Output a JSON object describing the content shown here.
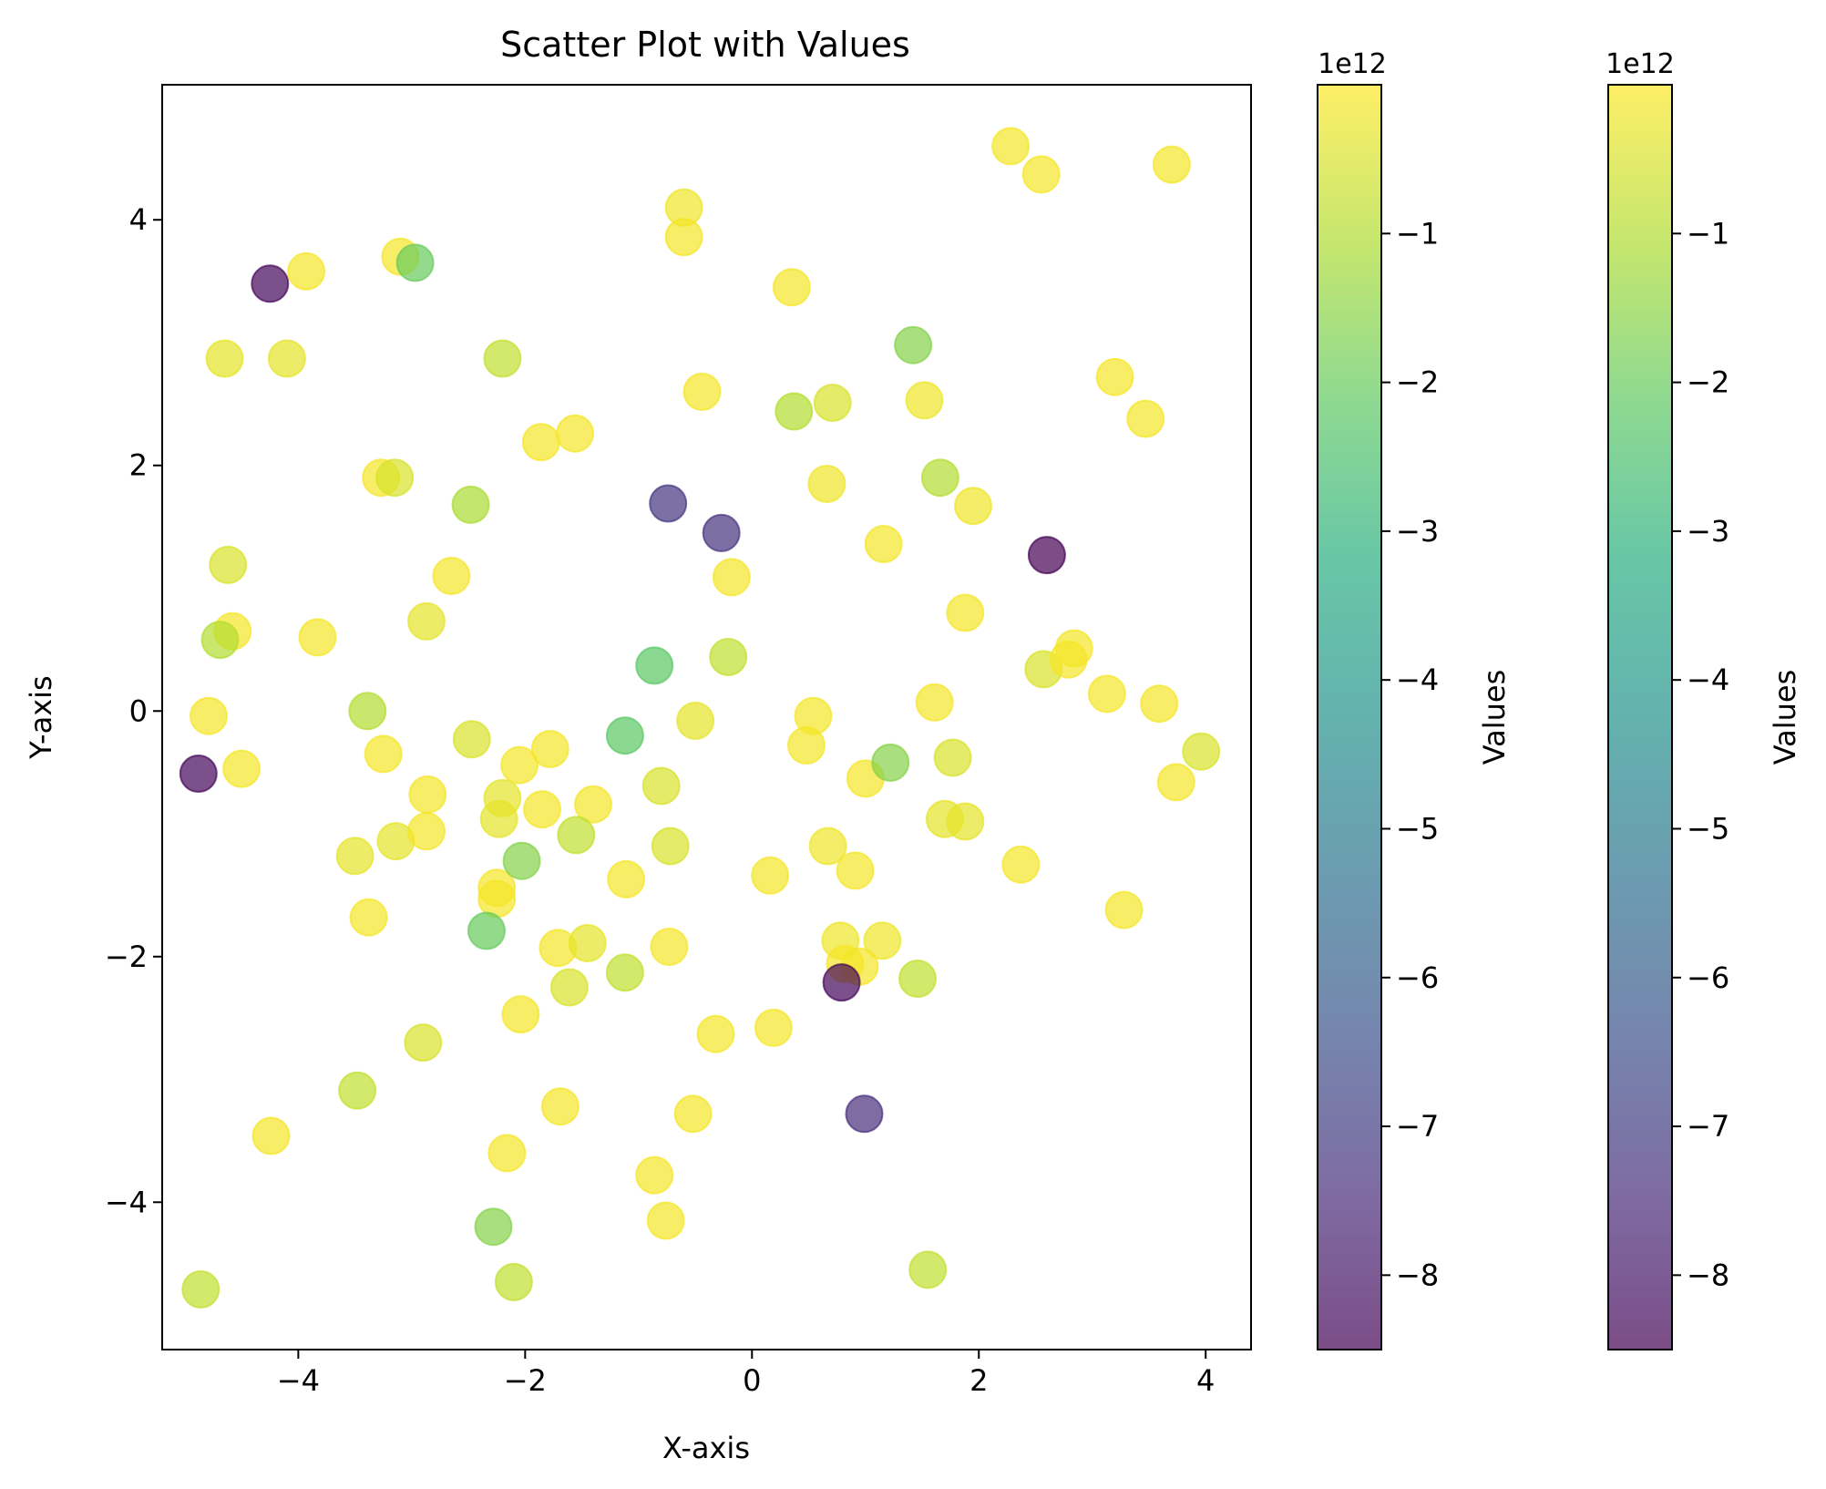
{
  "chart_data": {
    "type": "scatter",
    "title": "Scatter Plot with Values",
    "xlabel": "X-axis",
    "ylabel": "Y-axis",
    "xlim": [
      -5.2,
      4.4
    ],
    "ylim": [
      -5.2,
      5.1
    ],
    "xticks": [
      -4,
      -2,
      0,
      2,
      4
    ],
    "yticks": [
      -4,
      -2,
      0,
      2,
      4
    ],
    "xtick_labels": [
      "−4",
      "−2",
      "0",
      "2",
      "4"
    ],
    "ytick_labels": [
      "−4",
      "−2",
      "0",
      "2",
      "4"
    ],
    "colormap": "viridis",
    "alpha": 0.7,
    "grid": false,
    "colorbars": [
      {
        "label": "Values",
        "offset_text": "1e12",
        "range": [
          -8.5,
          0.0
        ],
        "ticks": [
          -8,
          -7,
          -6,
          -5,
          -4,
          -3,
          -2,
          -1
        ],
        "tick_labels": [
          "−8",
          "−7",
          "−6",
          "−5",
          "−4",
          "−3",
          "−2",
          "−1"
        ]
      },
      {
        "label": "Values",
        "offset_text": "1e12",
        "range": [
          -8.5,
          0.0
        ],
        "ticks": [
          -8,
          -7,
          -6,
          -5,
          -4,
          -3,
          -2,
          -1
        ],
        "tick_labels": [
          "−8",
          "−7",
          "−6",
          "−5",
          "−4",
          "−3",
          "−2",
          "−1"
        ]
      }
    ],
    "points": [
      [
        -4.25,
        3.48,
        -8.4
      ],
      [
        -3.93,
        3.58,
        -0.1
      ],
      [
        -3.1,
        3.7,
        -0.1
      ],
      [
        -2.97,
        3.65,
        -2.0
      ],
      [
        -4.65,
        2.87,
        -0.3
      ],
      [
        -4.1,
        2.87,
        -0.3
      ],
      [
        -2.2,
        2.87,
        -0.8
      ],
      [
        -0.6,
        4.1,
        -0.2
      ],
      [
        -0.6,
        3.86,
        -0.1
      ],
      [
        0.35,
        3.45,
        -0.1
      ],
      [
        2.28,
        4.6,
        -0.1
      ],
      [
        2.55,
        4.37,
        -0.1
      ],
      [
        3.7,
        4.45,
        -0.1
      ],
      [
        1.42,
        2.98,
        -1.6
      ],
      [
        -0.44,
        2.6,
        -0.1
      ],
      [
        0.37,
        2.44,
        -1.0
      ],
      [
        0.71,
        2.51,
        -0.5
      ],
      [
        1.52,
        2.53,
        -0.2
      ],
      [
        3.2,
        2.72,
        -0.1
      ],
      [
        3.47,
        2.38,
        -0.1
      ],
      [
        -1.86,
        2.19,
        -0.1
      ],
      [
        -1.56,
        2.26,
        -0.1
      ],
      [
        -3.27,
        1.9,
        -0.1
      ],
      [
        -3.15,
        1.9,
        -0.5
      ],
      [
        -2.48,
        1.68,
        -1.1
      ],
      [
        -0.74,
        1.69,
        -7.2
      ],
      [
        -0.27,
        1.45,
        -7.3
      ],
      [
        0.66,
        1.85,
        -0.2
      ],
      [
        1.66,
        1.9,
        -1.0
      ],
      [
        1.95,
        1.67,
        -0.2
      ],
      [
        2.6,
        1.27,
        -8.5
      ],
      [
        1.16,
        1.36,
        -0.1
      ],
      [
        -4.62,
        1.19,
        -0.5
      ],
      [
        -2.65,
        1.1,
        -0.1
      ],
      [
        -0.18,
        1.09,
        -0.1
      ],
      [
        1.88,
        0.8,
        -0.1
      ],
      [
        -4.58,
        0.65,
        -0.1
      ],
      [
        -4.69,
        0.58,
        -1.0
      ],
      [
        -3.83,
        0.6,
        -0.1
      ],
      [
        -2.87,
        0.73,
        -0.3
      ],
      [
        -0.86,
        0.37,
        -2.2
      ],
      [
        -0.21,
        0.44,
        -0.8
      ],
      [
        2.57,
        0.34,
        -0.5
      ],
      [
        2.79,
        0.42,
        -0.1
      ],
      [
        2.84,
        0.51,
        -0.1
      ],
      [
        3.13,
        0.14,
        -0.1
      ],
      [
        3.59,
        0.06,
        -0.1
      ],
      [
        3.96,
        -0.33,
        -0.5
      ],
      [
        -4.79,
        -0.04,
        -0.1
      ],
      [
        -3.39,
        0.0,
        -1.0
      ],
      [
        -2.47,
        -0.23,
        -0.5
      ],
      [
        -1.12,
        -0.2,
        -2.2
      ],
      [
        -0.5,
        -0.08,
        -0.3
      ],
      [
        0.54,
        -0.04,
        -0.1
      ],
      [
        0.48,
        -0.28,
        -0.1
      ],
      [
        1.61,
        0.07,
        -0.1
      ],
      [
        -4.88,
        -0.51,
        -8.4
      ],
      [
        -4.5,
        -0.47,
        -0.1
      ],
      [
        -3.25,
        -0.35,
        -0.1
      ],
      [
        -2.05,
        -0.44,
        -0.1
      ],
      [
        -1.78,
        -0.31,
        -0.1
      ],
      [
        -2.2,
        -0.71,
        -0.3
      ],
      [
        -2.23,
        -0.88,
        -0.3
      ],
      [
        -1.85,
        -0.8,
        -0.1
      ],
      [
        -1.4,
        -0.76,
        -0.1
      ],
      [
        -0.8,
        -0.61,
        -0.5
      ],
      [
        1.0,
        -0.55,
        -0.1
      ],
      [
        1.22,
        -0.42,
        -1.6
      ],
      [
        1.77,
        -0.38,
        -0.5
      ],
      [
        1.7,
        -0.88,
        -0.3
      ],
      [
        1.88,
        -0.9,
        -0.3
      ],
      [
        3.74,
        -0.58,
        -0.1
      ],
      [
        -3.5,
        -1.18,
        -0.3
      ],
      [
        -3.14,
        -1.06,
        -0.3
      ],
      [
        -2.87,
        -0.98,
        -0.1
      ],
      [
        -2.86,
        -0.68,
        -0.1
      ],
      [
        -2.25,
        -1.44,
        -0.1
      ],
      [
        -2.25,
        -1.53,
        -0.1
      ],
      [
        -2.03,
        -1.22,
        -1.6
      ],
      [
        -1.55,
        -1.01,
        -0.8
      ],
      [
        -1.11,
        -1.37,
        -0.1
      ],
      [
        -0.72,
        -1.1,
        -0.5
      ],
      [
        0.16,
        -1.34,
        -0.1
      ],
      [
        0.67,
        -1.1,
        -0.2
      ],
      [
        0.91,
        -1.3,
        -0.1
      ],
      [
        2.37,
        -1.25,
        -0.1
      ],
      [
        3.28,
        -1.62,
        -0.1
      ],
      [
        -3.38,
        -1.68,
        -0.1
      ],
      [
        -2.34,
        -1.79,
        -2.0
      ],
      [
        -1.71,
        -1.93,
        -0.1
      ],
      [
        -1.45,
        -1.89,
        -0.3
      ],
      [
        -1.61,
        -2.25,
        -0.5
      ],
      [
        -1.12,
        -2.13,
        -0.8
      ],
      [
        -0.73,
        -1.92,
        -0.1
      ],
      [
        0.78,
        -1.87,
        -0.2
      ],
      [
        1.15,
        -1.87,
        -0.2
      ],
      [
        0.82,
        -2.06,
        -0.1
      ],
      [
        0.95,
        -2.08,
        -0.1
      ],
      [
        0.79,
        -2.21,
        -8.4
      ],
      [
        1.46,
        -2.18,
        -0.8
      ],
      [
        -2.04,
        -2.47,
        -0.1
      ],
      [
        -2.9,
        -2.7,
        -0.5
      ],
      [
        -0.32,
        -2.63,
        -0.1
      ],
      [
        0.19,
        -2.58,
        -0.1
      ],
      [
        -3.48,
        -3.09,
        -0.8
      ],
      [
        -1.69,
        -3.22,
        -0.1
      ],
      [
        -0.52,
        -3.28,
        -0.1
      ],
      [
        0.99,
        -3.28,
        -7.4
      ],
      [
        -4.24,
        -3.46,
        -0.1
      ],
      [
        -2.16,
        -3.6,
        -0.1
      ],
      [
        -0.86,
        -3.78,
        -0.1
      ],
      [
        -0.76,
        -4.15,
        -0.1
      ],
      [
        -2.28,
        -4.2,
        -1.6
      ],
      [
        -4.86,
        -4.71,
        -0.8
      ],
      [
        -2.1,
        -4.65,
        -0.8
      ],
      [
        1.55,
        -4.55,
        -0.8
      ]
    ]
  }
}
